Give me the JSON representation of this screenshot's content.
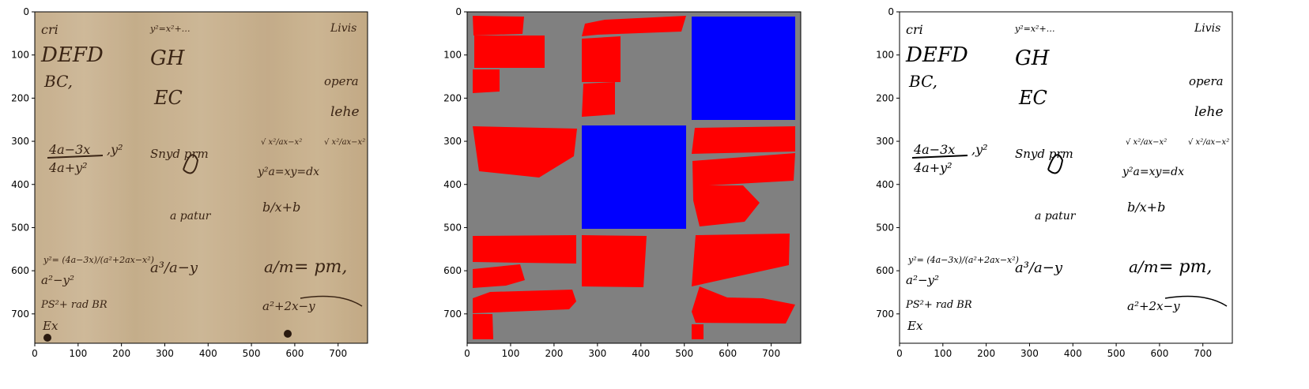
{
  "figure": {
    "axis_ticks": {
      "x": [
        0,
        100,
        200,
        300,
        400,
        500,
        600,
        700
      ],
      "y": [
        0,
        100,
        200,
        300,
        400,
        500,
        600,
        700
      ]
    },
    "image_extent": [
      0,
      768
    ]
  },
  "panels": [
    {
      "name": "scan-panel",
      "content": "manuscript-scan"
    },
    {
      "name": "mask-panel",
      "content": "region-mask"
    },
    {
      "name": "binarized-panel",
      "content": "binarized-scan"
    }
  ],
  "colors": {
    "parchment": "#cdb998",
    "ink": "#3a2414",
    "mask_background": "#808080",
    "mask_text_region": "#ff0000",
    "mask_figure_region": "#0000ff",
    "binary_background": "#ffffff",
    "binary_ink": "#000000"
  },
  "handwriting": {
    "line1": "cri",
    "line2": "DEFD",
    "line3": "BC,",
    "line4": "GH",
    "line5": "EC",
    "top_right": "Livis",
    "formula_top": "y²=x²+…",
    "frac_num": "4a−3x",
    "frac_den": "4a+y²",
    "y_part": ",y²",
    "mid_word": "Snyd prm",
    "sqrt_frac": "√ x²/ax−x²",
    "eq_right": "y²a=xy=dx",
    "word_left": "a  patur",
    "frac2": "b/x+b",
    "y_eq": "y²= (4a−3x)/(a²+2ax−x²)",
    "a3": "a³/a−y",
    "pm": "= pm,",
    "a_m": "a/m",
    "a2y2": "a²−y²",
    "bottom_left": "PS²+ rad BR",
    "bottom_mid": "a²+2x−y",
    "p_ex": "Ex",
    "opera": "opera",
    "lehe": "lehe"
  }
}
